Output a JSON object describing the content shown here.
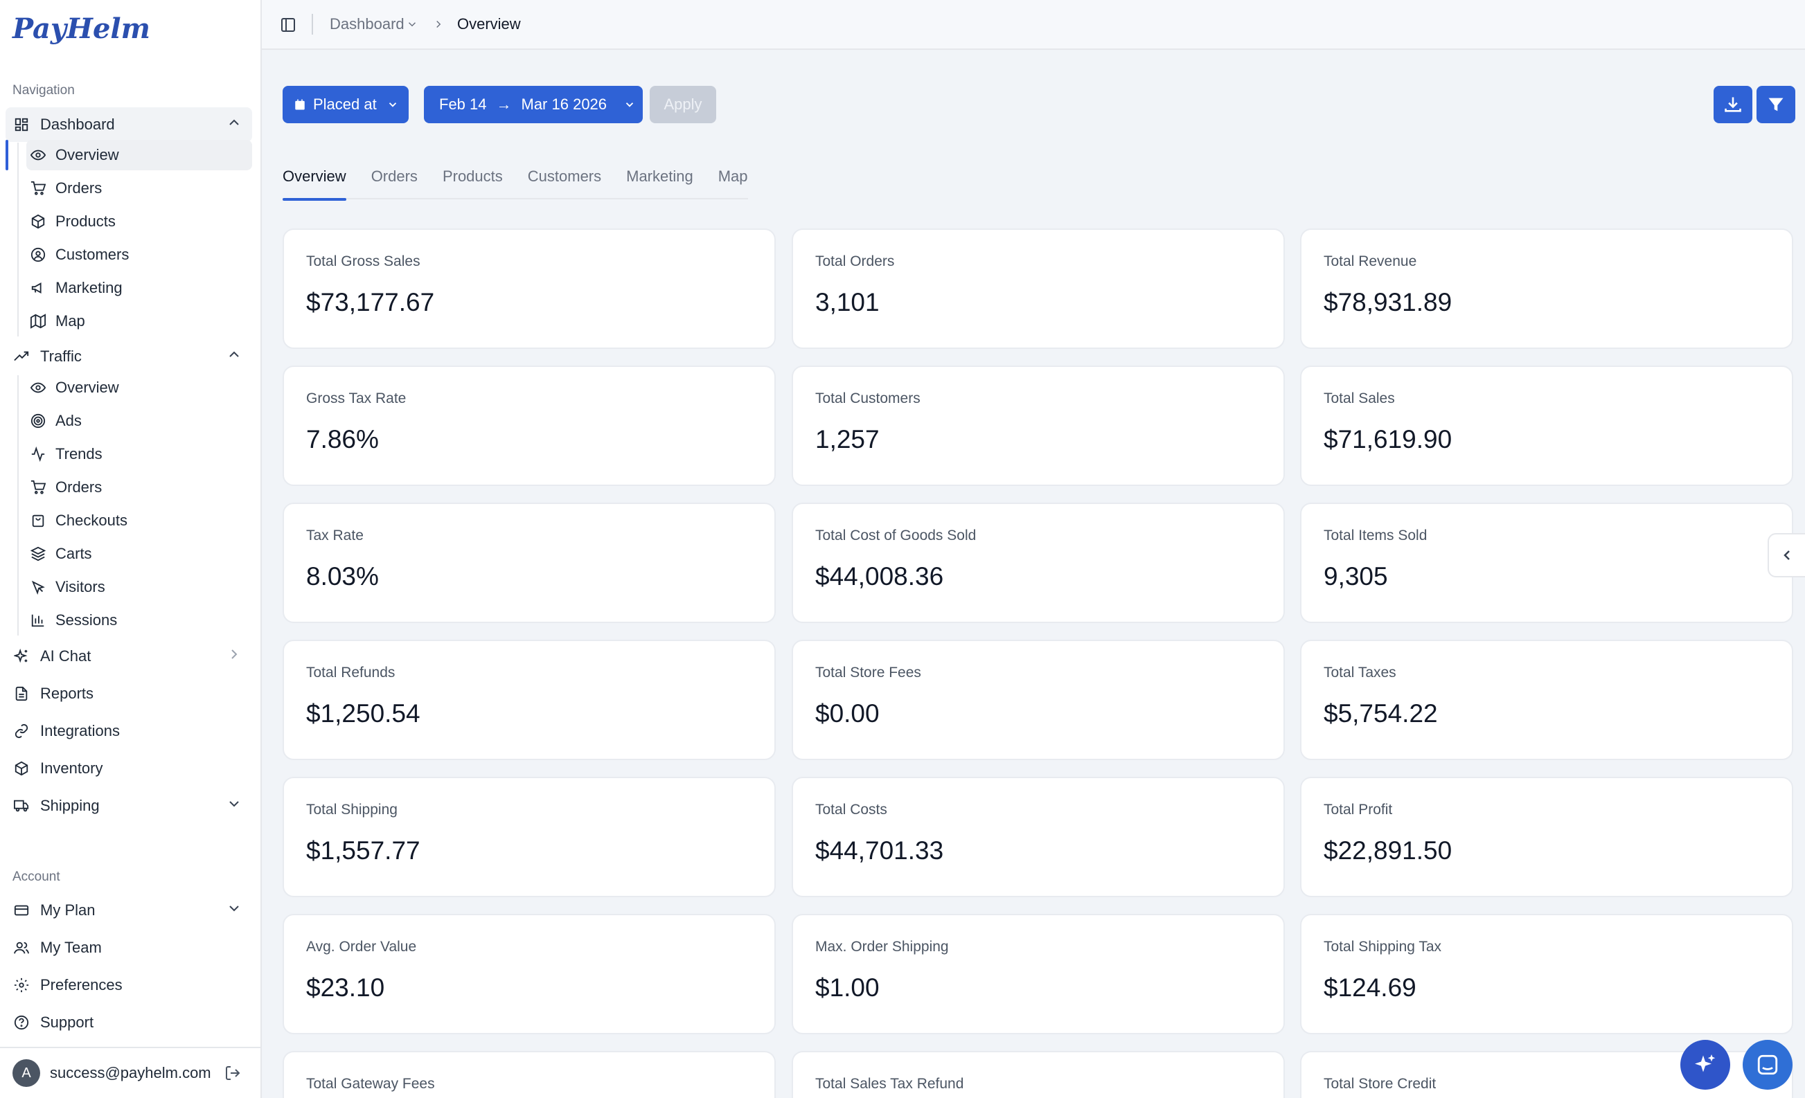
{
  "brand": {
    "name": "PayHelm",
    "color": "#2b4fae"
  },
  "accent_color": "#2f62d6",
  "sidebar": {
    "navigation_label": "Navigation",
    "dashboard": {
      "label": "Dashboard",
      "items": [
        {
          "label": "Overview",
          "icon": "eye-icon"
        },
        {
          "label": "Orders",
          "icon": "cart-icon"
        },
        {
          "label": "Products",
          "icon": "box-icon"
        },
        {
          "label": "Customers",
          "icon": "user-circle-icon"
        },
        {
          "label": "Marketing",
          "icon": "megaphone-icon"
        },
        {
          "label": "Map",
          "icon": "map-icon"
        }
      ]
    },
    "traffic": {
      "label": "Traffic",
      "items": [
        {
          "label": "Overview",
          "icon": "eye-icon"
        },
        {
          "label": "Ads",
          "icon": "target-icon"
        },
        {
          "label": "Trends",
          "icon": "activity-icon"
        },
        {
          "label": "Orders",
          "icon": "cart-icon"
        },
        {
          "label": "Checkouts",
          "icon": "bag-icon"
        },
        {
          "label": "Carts",
          "icon": "layers-icon"
        },
        {
          "label": "Visitors",
          "icon": "pointer-icon"
        },
        {
          "label": "Sessions",
          "icon": "bar-chart-icon"
        }
      ]
    },
    "ai_chat": "AI Chat",
    "reports": "Reports",
    "integrations": "Integrations",
    "inventory": "Inventory",
    "shipping": "Shipping",
    "account_label": "Account",
    "my_plan": "My Plan",
    "my_team": "My Team",
    "preferences": "Preferences",
    "support": "Support",
    "user": {
      "initial": "A",
      "email": "success@payhelm.com"
    }
  },
  "breadcrumb": {
    "parent": "Dashboard",
    "current": "Overview"
  },
  "filters": {
    "date_field": "Placed at",
    "range_start": "Feb 14",
    "range_arrow": "→",
    "range_end": "Mar 16 2026",
    "apply": "Apply"
  },
  "tabs": [
    "Overview",
    "Orders",
    "Products",
    "Customers",
    "Marketing",
    "Map"
  ],
  "metrics": [
    {
      "label": "Total Gross Sales",
      "value": "$73,177.67"
    },
    {
      "label": "Total Orders",
      "value": "3,101"
    },
    {
      "label": "Total Revenue",
      "value": "$78,931.89"
    },
    {
      "label": "Gross Tax Rate",
      "value": "7.86%"
    },
    {
      "label": "Total Customers",
      "value": "1,257"
    },
    {
      "label": "Total Sales",
      "value": "$71,619.90"
    },
    {
      "label": "Tax Rate",
      "value": "8.03%"
    },
    {
      "label": "Total Cost of Goods Sold",
      "value": "$44,008.36"
    },
    {
      "label": "Total Items Sold",
      "value": "9,305"
    },
    {
      "label": "Total Refunds",
      "value": "$1,250.54"
    },
    {
      "label": "Total Store Fees",
      "value": "$0.00"
    },
    {
      "label": "Total Taxes",
      "value": "$5,754.22"
    },
    {
      "label": "Total Shipping",
      "value": "$1,557.77"
    },
    {
      "label": "Total Costs",
      "value": "$44,701.33"
    },
    {
      "label": "Total Profit",
      "value": "$22,891.50"
    },
    {
      "label": "Avg. Order Value",
      "value": "$23.10"
    },
    {
      "label": "Max. Order Shipping",
      "value": "$1.00"
    },
    {
      "label": "Total Shipping Tax",
      "value": "$124.69"
    },
    {
      "label": "Total Gateway Fees",
      "value": ""
    },
    {
      "label": "Total Sales Tax Refund",
      "value": ""
    },
    {
      "label": "Total Store Credit",
      "value": ""
    }
  ]
}
